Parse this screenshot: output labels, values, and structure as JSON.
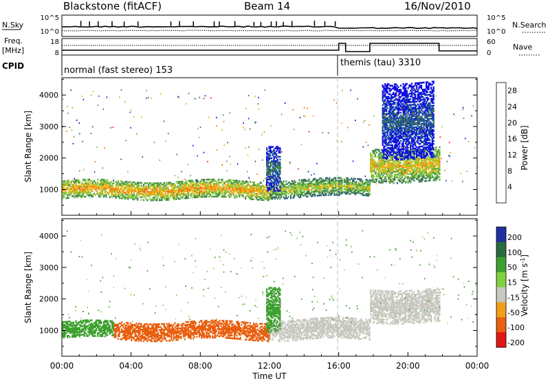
{
  "header": {
    "station": "Blackstone (fitACF)",
    "beam": "Beam 14",
    "date": "16/Nov/2010"
  },
  "sky_search_panel": {
    "left_label": "N.Sky",
    "right_label": "N.Search",
    "left_ticks": [
      "10^5",
      "10^0"
    ],
    "right_ticks": [
      "10^5",
      "10^0"
    ]
  },
  "freq_nave_panel": {
    "left_label_1": "Freq.",
    "left_label_2": "[MHz]",
    "right_label": "Nave",
    "left_ticks": [
      "18",
      "8"
    ],
    "right_ticks": [
      "60",
      "0"
    ]
  },
  "cpid": {
    "label": "CPID",
    "modes": [
      {
        "name": "normal (fast stereo) 153",
        "start_hour": 0
      },
      {
        "name": "themis (tau) 3310",
        "start_hour": 16
      }
    ]
  },
  "colors": {
    "power_scale": [
      "#1010e0",
      "#1a4fa8",
      "#3c6e5a",
      "#4a9a4a",
      "#8cc83c",
      "#f0b010",
      "#f07818",
      "#e82010"
    ],
    "velocity_scale": [
      "#2030a0",
      "#2a6a40",
      "#3fa030",
      "#80d040",
      "#c8c8c0",
      "#f0a018",
      "#e86010",
      "#e01818"
    ]
  },
  "chart_data": [
    {
      "type": "heatmap",
      "name": "power",
      "xlabel": "",
      "ylabel": "Slant Range [km]",
      "xlim": [
        0,
        24
      ],
      "ylim": [
        180,
        4550
      ],
      "yticks": [
        1000,
        2000,
        3000,
        4000
      ],
      "colorbar_label": "Power [dB]",
      "colorbar_ticks": [
        4,
        8,
        12,
        16,
        20,
        24,
        28
      ],
      "colorbar_range": [
        0,
        30
      ],
      "echo_bands": [
        {
          "t0": 0.0,
          "t1": 12.0,
          "r0": 700,
          "r1": 1250,
          "level": 24
        },
        {
          "t0": 12.0,
          "t1": 16.0,
          "r0": 750,
          "r1": 1300,
          "level": 20
        },
        {
          "t0": 16.0,
          "t1": 17.8,
          "r0": 800,
          "r1": 1300,
          "level": 20
        },
        {
          "t0": 17.8,
          "t1": 21.8,
          "r0": 1250,
          "r1": 2300,
          "level": 22
        },
        {
          "t0": 11.8,
          "t1": 12.6,
          "r0": 1000,
          "r1": 2400,
          "level": 10
        },
        {
          "t0": 18.5,
          "t1": 21.5,
          "r0": 2000,
          "r1": 4400,
          "level": 8
        }
      ]
    },
    {
      "type": "heatmap",
      "name": "velocity",
      "xlabel": "Time UT",
      "ylabel": "Slant Range [km]",
      "xlim": [
        0,
        24
      ],
      "ylim": [
        180,
        4550
      ],
      "yticks": [
        1000,
        2000,
        3000,
        4000
      ],
      "xticks": [
        "00:00",
        "04:00",
        "08:00",
        "12:00",
        "16:00",
        "20:00",
        "00:00"
      ],
      "colorbar_label": "Velocity [m s^-1]",
      "colorbar_ticks": [
        200,
        100,
        50,
        15,
        -15,
        -50,
        -100,
        -200
      ],
      "echo_bands": [
        {
          "t0": 0.0,
          "t1": 3.0,
          "r0": 750,
          "r1": 1250,
          "level": 30
        },
        {
          "t0": 3.0,
          "t1": 12.0,
          "r0": 700,
          "r1": 1250,
          "level": -60
        },
        {
          "t0": 12.0,
          "t1": 17.8,
          "r0": 700,
          "r1": 1350,
          "level": 0
        },
        {
          "t0": 17.8,
          "t1": 21.8,
          "r0": 1250,
          "r1": 2300,
          "level": 0
        },
        {
          "t0": 11.8,
          "t1": 12.6,
          "r0": 1000,
          "r1": 2400,
          "level": 40
        }
      ]
    }
  ]
}
